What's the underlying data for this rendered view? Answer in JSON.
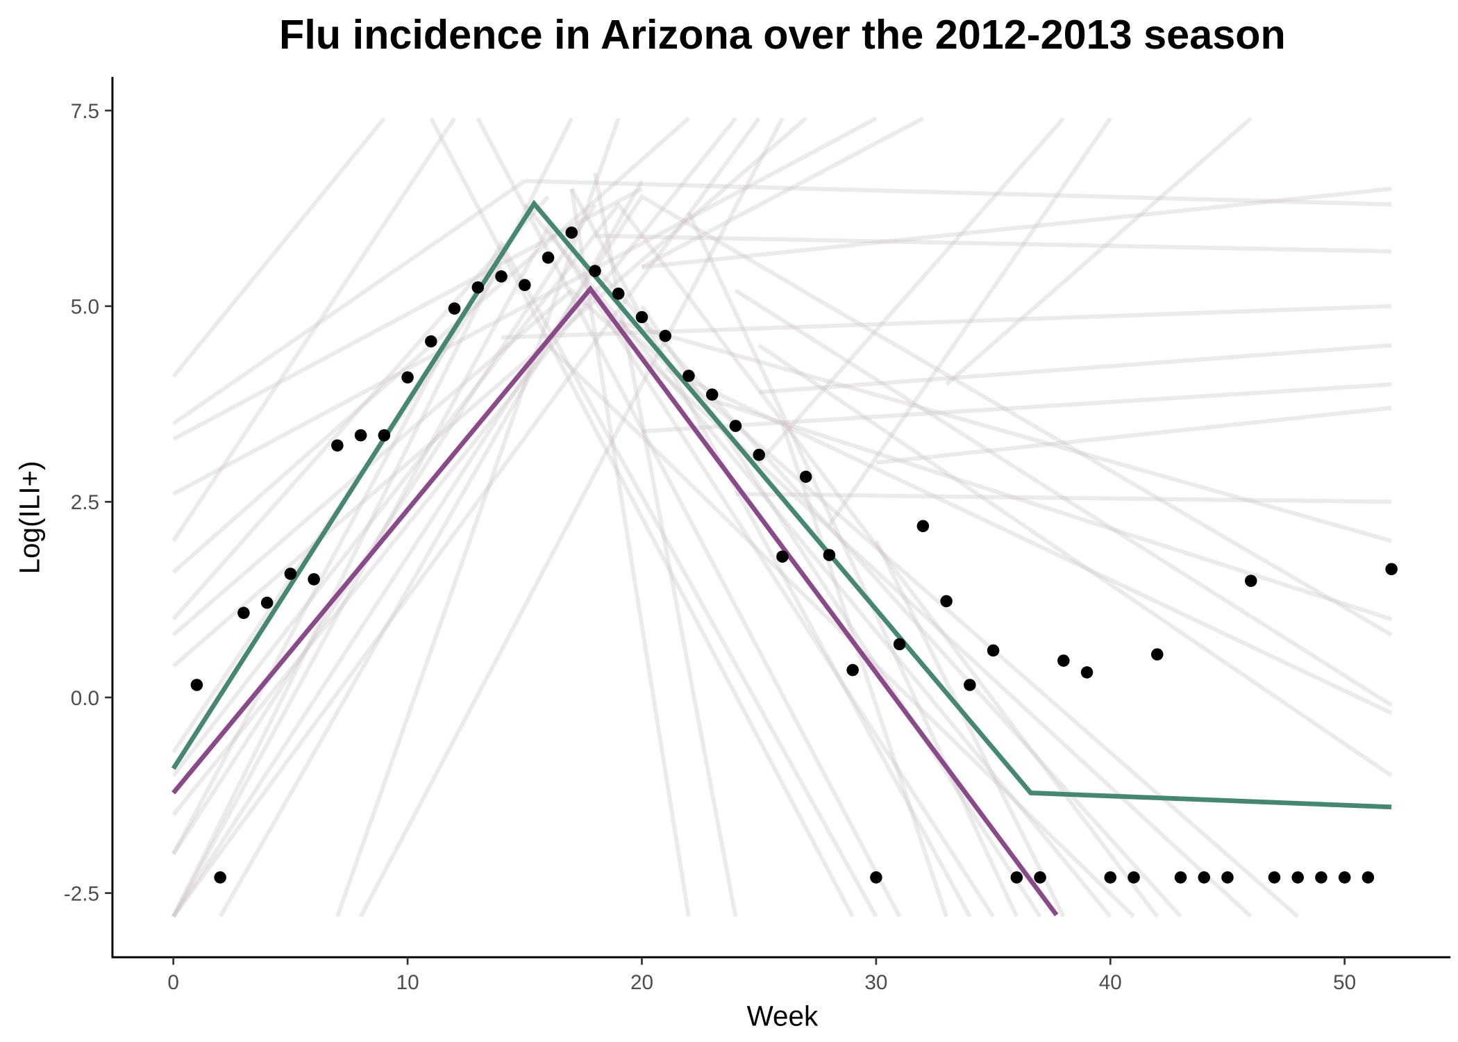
{
  "chart_data": {
    "type": "line",
    "title": "Flu incidence in Arizona over the 2012-2013 season",
    "x_label": "Week",
    "y_label": "Log(ILI+)",
    "xlim": [
      -2.6,
      54.52
    ],
    "ylim": [
      -3.32,
      7.93
    ],
    "xticks": [
      0,
      10,
      20,
      30,
      40,
      50
    ],
    "yticks": [
      -2.5,
      {
        "value": 0,
        "label": "0.0"
      },
      2.5,
      {
        "value": 5,
        "label": "5.0"
      },
      7.5
    ],
    "grid": false,
    "series": [
      {
        "mode": "lines",
        "color": "#cbc3c6",
        "opacity": 0.35,
        "x": [
          0,
          9
        ],
        "values": [
          4.1,
          7.4
        ]
      },
      {
        "mode": "lines",
        "color": "#cbc3c6",
        "opacity": 0.35,
        "x": [
          0,
          17
        ],
        "values": [
          -2.8,
          7.4
        ]
      },
      {
        "mode": "lines",
        "color": "#cbc3c6",
        "opacity": 0.35,
        "x": [
          0,
          15
        ],
        "values": [
          3.5,
          6.6
        ]
      },
      {
        "mode": "lines",
        "color": "#cbc3c6",
        "opacity": 0.35,
        "x": [
          0,
          22
        ],
        "values": [
          1.6,
          7.4
        ]
      },
      {
        "mode": "lines",
        "color": "#cbc3c6",
        "opacity": 0.35,
        "x": [
          0,
          12
        ],
        "values": [
          2.0,
          7.4
        ]
      },
      {
        "mode": "lines",
        "color": "#cbc3c6",
        "opacity": 0.35,
        "x": [
          0,
          25
        ],
        "values": [
          -2.8,
          7.4
        ]
      },
      {
        "mode": "lines",
        "color": "#cbc3c6",
        "opacity": 0.35,
        "x": [
          0,
          27
        ],
        "values": [
          0.4,
          7.4
        ]
      },
      {
        "mode": "lines",
        "color": "#cbc3c6",
        "opacity": 0.35,
        "x": [
          0,
          20
        ],
        "values": [
          3.3,
          6.5
        ]
      },
      {
        "mode": "lines",
        "color": "#cbc3c6",
        "opacity": 0.35,
        "x": [
          0,
          18
        ],
        "values": [
          -2.0,
          6.3
        ]
      },
      {
        "mode": "lines",
        "color": "#cbc3c6",
        "opacity": 0.35,
        "x": [
          0,
          24
        ],
        "values": [
          -1.5,
          7.4
        ]
      },
      {
        "mode": "lines",
        "color": "#cbc3c6",
        "opacity": 0.35,
        "x": [
          2,
          20
        ],
        "values": [
          -2.8,
          6.6
        ]
      },
      {
        "mode": "lines",
        "color": "#cbc3c6",
        "opacity": 0.35,
        "x": [
          7,
          19
        ],
        "values": [
          -2.8,
          7.4
        ]
      },
      {
        "mode": "lines",
        "color": "#cbc3c6",
        "opacity": 0.35,
        "x": [
          8,
          26
        ],
        "values": [
          -2.8,
          7.4
        ]
      },
      {
        "mode": "lines",
        "color": "#cbc3c6",
        "opacity": 0.35,
        "x": [
          0,
          16
        ],
        "values": [
          1.0,
          6.4
        ]
      },
      {
        "mode": "lines",
        "color": "#cbc3c6",
        "opacity": 0.35,
        "x": [
          0,
          30
        ],
        "values": [
          2.6,
          7.4
        ]
      },
      {
        "mode": "lines",
        "color": "#cbc3c6",
        "opacity": 0.35,
        "x": [
          0,
          14
        ],
        "values": [
          -0.7,
          5.5
        ]
      },
      {
        "mode": "lines",
        "color": "#cbc3c6",
        "opacity": 0.35,
        "x": [
          11,
          29
        ],
        "values": [
          7.4,
          -2.8
        ]
      },
      {
        "mode": "lines",
        "color": "#cbc3c6",
        "opacity": 0.35,
        "x": [
          13,
          31
        ],
        "values": [
          7.4,
          -2.8
        ]
      },
      {
        "mode": "lines",
        "color": "#cbc3c6",
        "opacity": 0.35,
        "x": [
          15,
          40
        ],
        "values": [
          6.3,
          -2.8
        ]
      },
      {
        "mode": "lines",
        "color": "#cbc3c6",
        "opacity": 0.35,
        "x": [
          17,
          34
        ],
        "values": [
          6.5,
          -2.8
        ]
      },
      {
        "mode": "lines",
        "color": "#cbc3c6",
        "opacity": 0.35,
        "x": [
          18,
          43
        ],
        "values": [
          5.5,
          -2.8
        ]
      },
      {
        "mode": "lines",
        "color": "#cbc3c6",
        "opacity": 0.35,
        "x": [
          20,
          37
        ],
        "values": [
          5.0,
          -2.8
        ]
      },
      {
        "mode": "lines",
        "color": "#cbc3c6",
        "opacity": 0.35,
        "x": [
          22,
          36
        ],
        "values": [
          6.2,
          -2.8
        ]
      },
      {
        "mode": "lines",
        "color": "#cbc3c6",
        "opacity": 0.35,
        "x": [
          16,
          41
        ],
        "values": [
          4.5,
          -2.8
        ]
      },
      {
        "mode": "lines",
        "color": "#cbc3c6",
        "opacity": 0.35,
        "x": [
          19,
          48
        ],
        "values": [
          4.8,
          -2.8
        ]
      },
      {
        "mode": "lines",
        "color": "#cbc3c6",
        "opacity": 0.35,
        "x": [
          21,
          52
        ],
        "values": [
          4.2,
          -0.2
        ]
      },
      {
        "mode": "lines",
        "color": "#cbc3c6",
        "opacity": 0.35,
        "x": [
          24,
          52
        ],
        "values": [
          5.2,
          -0.1
        ]
      },
      {
        "mode": "lines",
        "color": "#cbc3c6",
        "opacity": 0.35,
        "x": [
          23,
          52
        ],
        "values": [
          3.8,
          1.0
        ]
      },
      {
        "mode": "lines",
        "color": "#cbc3c6",
        "opacity": 0.35,
        "x": [
          25,
          52
        ],
        "values": [
          4.5,
          -1.0
        ]
      },
      {
        "mode": "lines",
        "color": "#cbc3c6",
        "opacity": 0.35,
        "x": [
          17,
          22
        ],
        "values": [
          6.5,
          -2.8
        ]
      },
      {
        "mode": "lines",
        "color": "#cbc3c6",
        "opacity": 0.35,
        "x": [
          18,
          24
        ],
        "values": [
          6.7,
          -2.8
        ]
      },
      {
        "mode": "lines",
        "color": "#cbc3c6",
        "opacity": 0.35,
        "x": [
          26,
          33
        ],
        "values": [
          3.5,
          -2.8
        ]
      },
      {
        "mode": "lines",
        "color": "#cbc3c6",
        "opacity": 0.35,
        "x": [
          30,
          38
        ],
        "values": [
          2.0,
          -2.8
        ]
      },
      {
        "mode": "lines",
        "color": "#cbc3c6",
        "opacity": 0.35,
        "x": [
          0,
          16,
          35
        ],
        "values": [
          -2.8,
          6.0,
          -2.8
        ]
      },
      {
        "mode": "lines",
        "color": "#cbc3c6",
        "opacity": 0.35,
        "x": [
          0,
          14,
          30
        ],
        "values": [
          -2.0,
          5.8,
          -2.8
        ]
      },
      {
        "mode": "lines",
        "color": "#cbc3c6",
        "opacity": 0.35,
        "x": [
          0,
          19,
          42
        ],
        "values": [
          -1.0,
          6.3,
          -2.8
        ]
      },
      {
        "mode": "lines",
        "color": "#cbc3c6",
        "opacity": 0.35,
        "x": [
          0,
          17,
          46
        ],
        "values": [
          0.8,
          5.2,
          -2.8
        ]
      },
      {
        "mode": "lines",
        "color": "#cbc3c6",
        "opacity": 0.35,
        "x": [
          0,
          20,
          52
        ],
        "values": [
          -2.8,
          6.4,
          0.8
        ]
      },
      {
        "mode": "lines",
        "color": "#cbc3c6",
        "opacity": 0.35,
        "x": [
          15,
          52
        ],
        "values": [
          6.6,
          6.3
        ]
      },
      {
        "mode": "lines",
        "color": "#cbc3c6",
        "opacity": 0.35,
        "x": [
          20,
          52
        ],
        "values": [
          5.5,
          6.5
        ]
      },
      {
        "mode": "lines",
        "color": "#cbc3c6",
        "opacity": 0.35,
        "x": [
          18,
          52
        ],
        "values": [
          5.9,
          5.7
        ]
      },
      {
        "mode": "lines",
        "color": "#cbc3c6",
        "opacity": 0.35,
        "x": [
          14,
          52
        ],
        "values": [
          4.6,
          5.0
        ]
      },
      {
        "mode": "lines",
        "color": "#cbc3c6",
        "opacity": 0.35,
        "x": [
          25,
          52
        ],
        "values": [
          3.9,
          4.5
        ]
      },
      {
        "mode": "lines",
        "color": "#cbc3c6",
        "opacity": 0.35,
        "x": [
          30,
          52
        ],
        "values": [
          3.0,
          3.7
        ]
      },
      {
        "mode": "lines",
        "color": "#cbc3c6",
        "opacity": 0.35,
        "x": [
          20,
          52
        ],
        "values": [
          3.4,
          4.0
        ]
      },
      {
        "mode": "lines",
        "color": "#cbc3c6",
        "opacity": 0.35,
        "x": [
          24,
          52
        ],
        "values": [
          2.6,
          2.5
        ]
      },
      {
        "mode": "lines",
        "color": "#cbc3c6",
        "opacity": 0.35,
        "x": [
          19,
          52
        ],
        "values": [
          4.8,
          2.0
        ]
      },
      {
        "mode": "lines",
        "color": "#cbc3c6",
        "opacity": 0.35,
        "x": [
          25,
          38
        ],
        "values": [
          3.0,
          7.4
        ]
      },
      {
        "mode": "lines",
        "color": "#cbc3c6",
        "opacity": 0.35,
        "x": [
          28,
          40
        ],
        "values": [
          2.2,
          7.4
        ]
      },
      {
        "mode": "lines",
        "color": "#cbc3c6",
        "opacity": 0.35,
        "x": [
          33,
          46
        ],
        "values": [
          4.0,
          7.4
        ]
      },
      {
        "mode": "lines",
        "color": "#cbc3c6",
        "opacity": 0.35,
        "x": [
          20,
          32
        ],
        "values": [
          5.5,
          7.4
        ]
      },
      {
        "mode": "lines",
        "color": "#46876f",
        "opacity": 1,
        "x": [
          0,
          15.4,
          36.6,
          52
        ],
        "values": [
          -0.91,
          6.31,
          -1.22,
          -1.4
        ]
      },
      {
        "mode": "lines",
        "color": "#8a4a8a",
        "opacity": 1,
        "x": [
          0,
          17.8,
          37.7
        ],
        "values": [
          -1.22,
          5.22,
          -2.78
        ]
      },
      {
        "mode": "points",
        "color": "#000000",
        "opacity": 1,
        "x": [
          1,
          2,
          3,
          4,
          5,
          6,
          7,
          8,
          9,
          10,
          11,
          12,
          13,
          14,
          15,
          16,
          17,
          18,
          19,
          20,
          21,
          22,
          23,
          24,
          25,
          26,
          27,
          28,
          29,
          30,
          31,
          32,
          33,
          34,
          35,
          36,
          37,
          38,
          39,
          40,
          41,
          42,
          43,
          44,
          45,
          46,
          47,
          48,
          49,
          50,
          51,
          52
        ],
        "values": [
          0.16,
          -2.3,
          1.08,
          1.21,
          1.58,
          1.51,
          3.22,
          3.35,
          3.35,
          4.09,
          4.55,
          4.97,
          5.24,
          5.38,
          5.27,
          5.62,
          5.94,
          5.45,
          5.16,
          4.86,
          4.62,
          4.11,
          3.87,
          3.47,
          3.1,
          1.8,
          2.82,
          1.82,
          0.35,
          -2.3,
          0.68,
          2.19,
          1.23,
          0.16,
          0.6,
          -2.3,
          -2.3,
          0.47,
          0.32,
          -2.3,
          -2.3,
          0.55,
          -2.3,
          -2.3,
          -2.3,
          1.49,
          -2.3,
          -2.3,
          -2.3,
          -2.3,
          -2.3,
          1.64
        ]
      }
    ]
  }
}
